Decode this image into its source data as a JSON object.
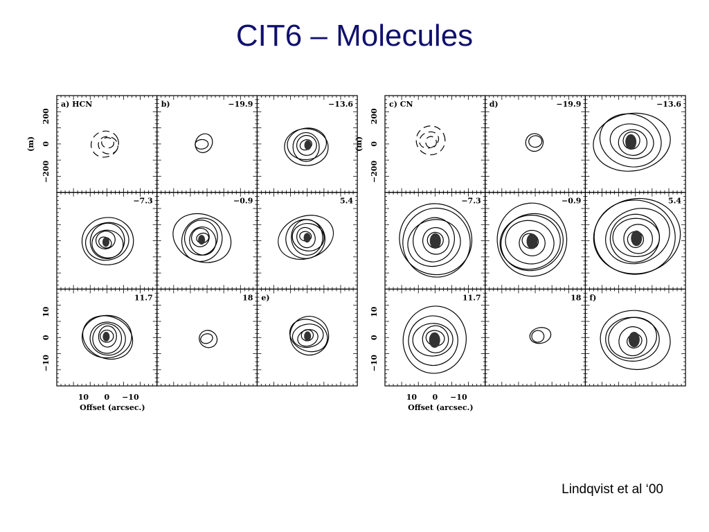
{
  "title": "CIT6 – Molecules",
  "citation": "Lindqvist et al ‘00",
  "figures": [
    {
      "panels": [
        {
          "label": "a) HCN"
        },
        {
          "label": "b)",
          "velocity": "−19.9"
        },
        {
          "velocity": "−13.6"
        },
        {
          "velocity": "−7.3"
        },
        {
          "velocity": "−0.9"
        },
        {
          "velocity": "5.4"
        },
        {
          "velocity": "11.7"
        },
        {
          "velocity": "18"
        },
        {
          "label": "e)"
        }
      ],
      "axes": {
        "y_top_ticks": [
          "200",
          "0",
          "−200"
        ],
        "y_top_label": "(m)",
        "y_bottom_ticks": [
          "10",
          "0",
          "−10"
        ],
        "x_ticks": [
          "10",
          "0",
          "−10"
        ],
        "x_label": "Offset (arcsec.)"
      }
    },
    {
      "panels": [
        {
          "label": "c) CN"
        },
        {
          "label": "d)",
          "velocity": "−19.9"
        },
        {
          "velocity": "−13.6"
        },
        {
          "velocity": "−7.3"
        },
        {
          "velocity": "−0.9"
        },
        {
          "velocity": "5.4"
        },
        {
          "velocity": "11.7"
        },
        {
          "velocity": "18"
        },
        {
          "label": "f)"
        }
      ],
      "axes": {
        "y_top_ticks": [
          "200",
          "0",
          "−200"
        ],
        "y_top_label": "(m)",
        "y_bottom_ticks": [
          "10",
          "0",
          "−10"
        ],
        "x_ticks": [
          "10",
          "0",
          "−10"
        ],
        "x_label": "Offset (arcsec.)"
      }
    }
  ]
}
